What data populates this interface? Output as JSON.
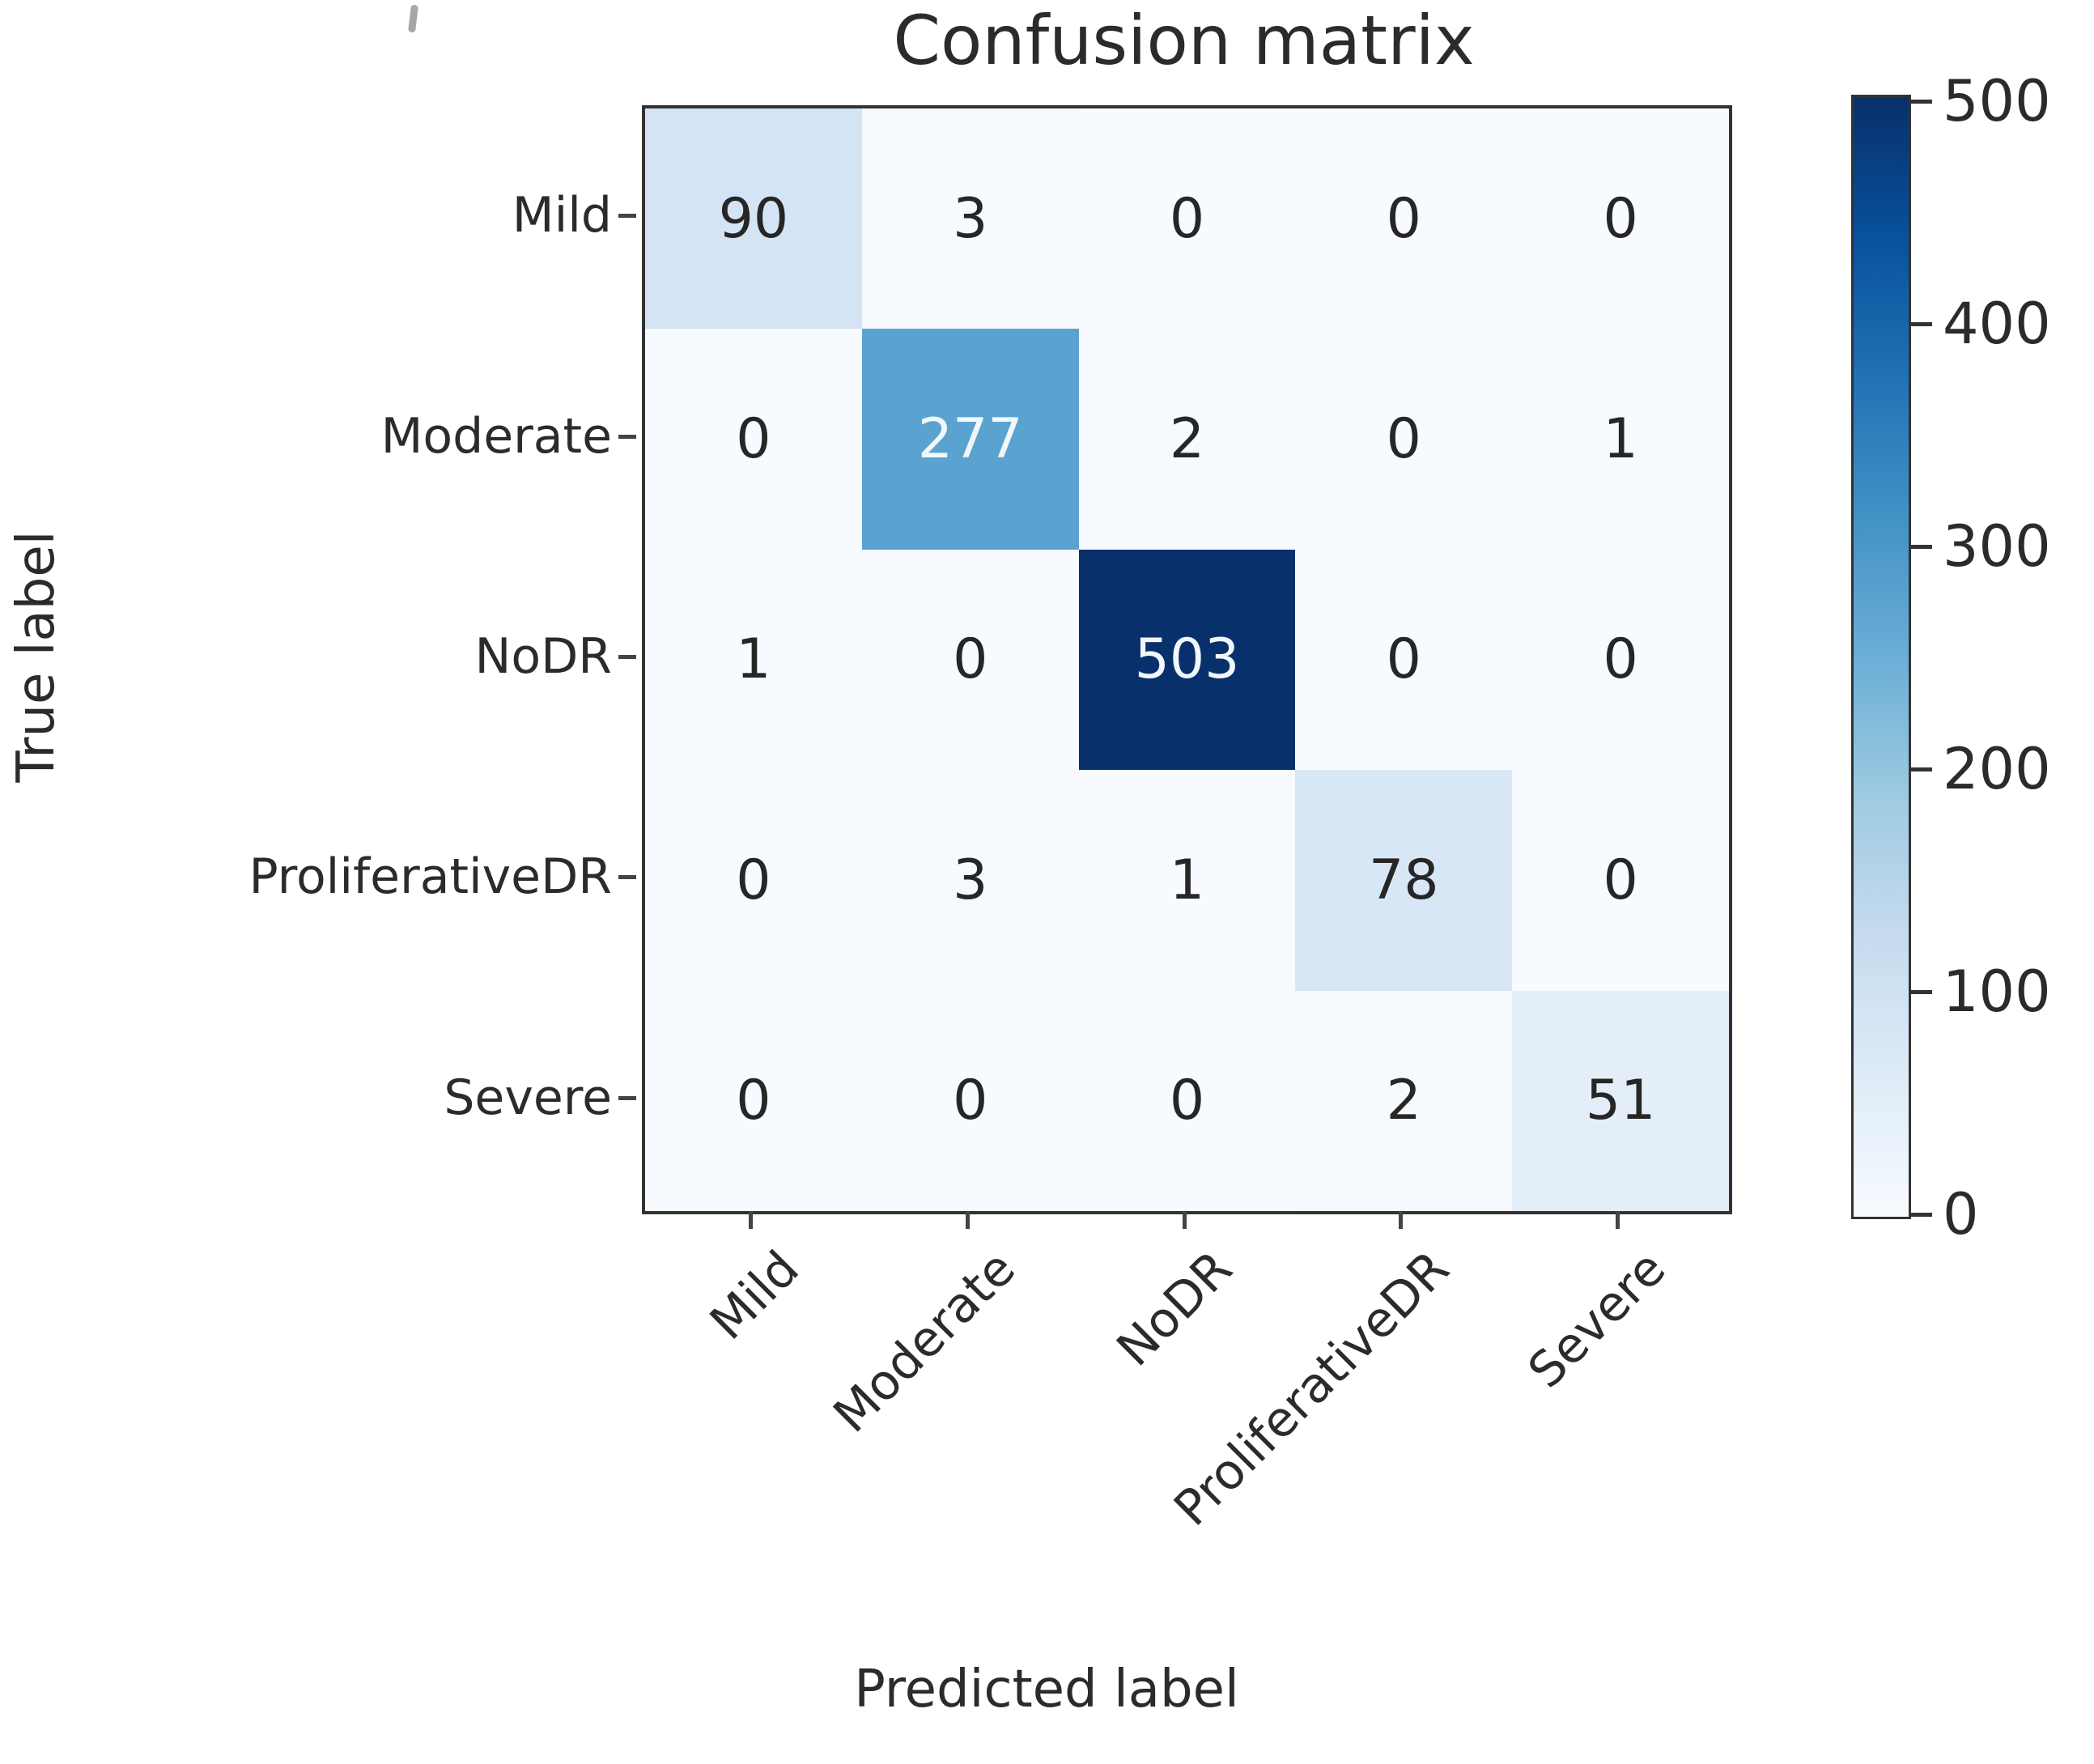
{
  "chart_data": {
    "type": "heatmap",
    "title": "Confusion matrix",
    "xlabel": "Predicted label",
    "ylabel": "True label",
    "x_tick_labels": [
      "Mild",
      "Moderate",
      "NoDR",
      "ProliferativeDR",
      "Severe"
    ],
    "y_tick_labels": [
      "Mild",
      "Moderate",
      "NoDR",
      "ProliferativeDR",
      "Severe"
    ],
    "matrix": [
      [
        90,
        3,
        0,
        0,
        0
      ],
      [
        0,
        277,
        2,
        0,
        1
      ],
      [
        1,
        0,
        503,
        0,
        0
      ],
      [
        0,
        3,
        1,
        78,
        0
      ],
      [
        0,
        0,
        0,
        2,
        51
      ]
    ],
    "value_range": [
      0,
      503
    ],
    "colorbar": {
      "ticks": [
        0,
        100,
        200,
        300,
        400,
        500
      ],
      "position": "right"
    },
    "colormap": {
      "name": "Blues",
      "stops": [
        "#f7fbff",
        "#deebf7",
        "#c6dbef",
        "#9ecae1",
        "#6baed6",
        "#4292c6",
        "#2171b5",
        "#08519c",
        "#08306b"
      ]
    },
    "text_colors": {
      "dark_cells": "#f2f7fc",
      "light_cells": "#262626"
    },
    "grid": false,
    "legend_position": "right-colorbar"
  }
}
